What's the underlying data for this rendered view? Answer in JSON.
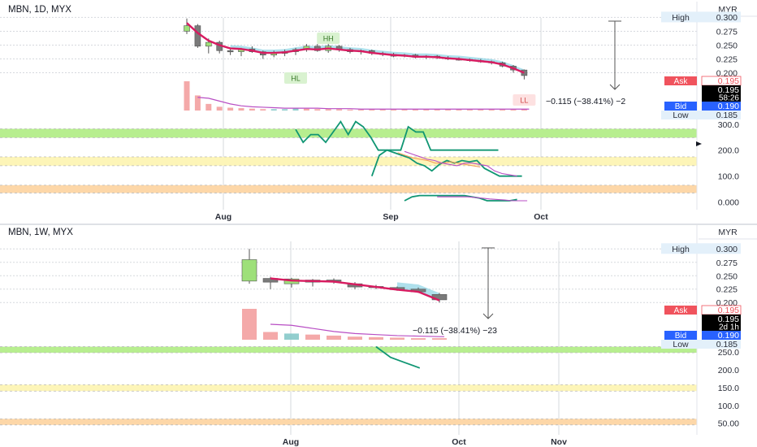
{
  "colors": {
    "background": "#ffffff",
    "grid": "#d6d9de",
    "text": "#131722",
    "axis_text": "#2a2e39",
    "candle_up": "#9ee07a",
    "candle_down": "#7a7a7a",
    "candle_wick": "#555555",
    "ma_red": "#d81b60",
    "cloud_blue": "#6cc6dd",
    "volume_bar": "#f29a9a",
    "volume_bar_teal": "#7fc6c6",
    "volume_line": "#b84ec4",
    "indicator_green": "#109673",
    "indicator_orange": "#f3a05a",
    "indicator_purple": "#b84ec4",
    "zone_green": "#b7ee8f",
    "zone_yellow": "#fdf5b8",
    "zone_orange": "#fdd7a8",
    "ask": "#f0535d",
    "bid": "#2962ff",
    "label_box": "#e3f0fa",
    "price_tag": "#000000",
    "annotation_green_bg": "#d9f2d0",
    "annotation_red_bg": "#fde1e1"
  },
  "chart_data": [
    {
      "type": "candlestick",
      "title": "MBN, 1D, MYX",
      "currency": "MYR",
      "x_ticks": [
        "Aug",
        "Sep",
        "Oct"
      ],
      "price_axis": {
        "range": [
          0.17,
          0.305
        ],
        "ticks": [
          "0.300",
          "0.275",
          "0.250",
          "0.225",
          "0.200"
        ]
      },
      "indicator_axis": {
        "range": [
          -20,
          340
        ],
        "ticks": [
          "300.0",
          "200.0",
          "100.0",
          "0.000"
        ]
      },
      "labels": {
        "high": "High",
        "high_value": "0.300",
        "ask": "Ask",
        "ask_value": "0.195",
        "last": "0.195",
        "countdown": "58:26",
        "bid": "Bid",
        "bid_value": "0.190",
        "low": "Low",
        "low_value": "0.185"
      },
      "annotations": [
        {
          "text": "HH",
          "style": "green",
          "bar": 13
        },
        {
          "text": "HL",
          "style": "green",
          "bar": 10
        },
        {
          "text": "LL",
          "style": "red",
          "bar": 31
        }
      ],
      "measure_label": "−0.115 (−38.41%) −2",
      "candles": [
        [
          0.275,
          0.298,
          0.27,
          0.285
        ],
        [
          0.285,
          0.288,
          0.245,
          0.248
        ],
        [
          0.248,
          0.262,
          0.235,
          0.255
        ],
        [
          0.255,
          0.258,
          0.235,
          0.24
        ],
        [
          0.24,
          0.245,
          0.232,
          0.238
        ],
        [
          0.238,
          0.245,
          0.23,
          0.243
        ],
        [
          0.243,
          0.248,
          0.236,
          0.238
        ],
        [
          0.238,
          0.24,
          0.225,
          0.232
        ],
        [
          0.232,
          0.24,
          0.228,
          0.235
        ],
        [
          0.235,
          0.242,
          0.23,
          0.238
        ],
        [
          0.238,
          0.245,
          0.232,
          0.242
        ],
        [
          0.242,
          0.252,
          0.238,
          0.248
        ],
        [
          0.248,
          0.252,
          0.238,
          0.24
        ],
        [
          0.24,
          0.252,
          0.236,
          0.248
        ],
        [
          0.248,
          0.25,
          0.238,
          0.242
        ],
        [
          0.242,
          0.245,
          0.235,
          0.238
        ],
        [
          0.238,
          0.242,
          0.233,
          0.24
        ],
        [
          0.24,
          0.242,
          0.232,
          0.235
        ],
        [
          0.235,
          0.238,
          0.23,
          0.233
        ],
        [
          0.233,
          0.236,
          0.228,
          0.23
        ],
        [
          0.23,
          0.234,
          0.228,
          0.232
        ],
        [
          0.232,
          0.234,
          0.226,
          0.228
        ],
        [
          0.228,
          0.232,
          0.225,
          0.23
        ],
        [
          0.23,
          0.232,
          0.225,
          0.227
        ],
        [
          0.227,
          0.23,
          0.223,
          0.225
        ],
        [
          0.225,
          0.228,
          0.222,
          0.224
        ],
        [
          0.224,
          0.226,
          0.22,
          0.222
        ],
        [
          0.222,
          0.225,
          0.218,
          0.22
        ],
        [
          0.22,
          0.222,
          0.215,
          0.218
        ],
        [
          0.218,
          0.22,
          0.21,
          0.212
        ],
        [
          0.212,
          0.214,
          0.2,
          0.205
        ],
        [
          0.205,
          0.206,
          0.188,
          0.195
        ]
      ],
      "ma_red": [
        0.29,
        0.272,
        0.258,
        0.25,
        0.244,
        0.243,
        0.24,
        0.236,
        0.236,
        0.237,
        0.24,
        0.243,
        0.242,
        0.244,
        0.242,
        0.24,
        0.239,
        0.236,
        0.234,
        0.232,
        0.231,
        0.229,
        0.229,
        0.228,
        0.226,
        0.225,
        0.223,
        0.221,
        0.219,
        0.215,
        0.208,
        0.2
      ],
      "volume": [
        62,
        32,
        14,
        8,
        6,
        5,
        4,
        3,
        3,
        3,
        5,
        4,
        3,
        3,
        3,
        2,
        2,
        2,
        2,
        2,
        2,
        2,
        2,
        2,
        2,
        2,
        2,
        2,
        2,
        2,
        2,
        3
      ],
      "volume_ma": [
        null,
        28,
        26,
        20,
        14,
        10,
        8,
        7,
        6,
        5,
        5,
        5,
        5,
        4,
        4,
        4,
        3,
        3,
        3,
        3,
        3,
        3,
        3,
        3,
        3,
        3,
        3,
        3,
        3,
        3,
        3,
        3
      ],
      "zones": [
        {
          "color": "green",
          "range": [
            248,
            282
          ]
        },
        {
          "color": "yellow",
          "range": [
            140,
            174
          ]
        },
        {
          "color": "orange",
          "range": [
            35,
            65
          ]
        }
      ],
      "indicator_series": [
        {
          "color": "green",
          "start": 10,
          "values": [
            280,
            230,
            260,
            260,
            230,
            270,
            310,
            260,
            310,
            290,
            250,
            200,
            200,
            200,
            200,
            290,
            270,
            270,
            200,
            200,
            200,
            200,
            200,
            200,
            200,
            200,
            200,
            200
          ]
        },
        {
          "color": "green",
          "start": 17,
          "values": [
            100,
            180,
            200,
            190,
            180,
            170,
            150,
            140,
            120,
            145,
            160,
            150,
            160,
            155,
            160,
            130,
            115,
            100,
            100,
            100,
            100
          ]
        },
        {
          "color": "orange",
          "start": 18,
          "values": [
            null,
            null,
            190,
            180,
            170,
            165,
            160,
            150,
            150,
            155,
            150,
            145,
            140,
            135
          ]
        },
        {
          "color": "purple",
          "start": 20,
          "values": [
            195,
            185,
            175,
            165,
            160,
            150,
            145,
            140,
            150,
            150,
            145,
            140,
            120,
            110,
            105,
            100
          ]
        },
        {
          "color": "green",
          "start": 20,
          "values": [
            5,
            20,
            25,
            25,
            25,
            25,
            25,
            25,
            25,
            20,
            15,
            5,
            5,
            5,
            5,
            10
          ]
        },
        {
          "color": "purple",
          "start": 23,
          "values": [
            20,
            20,
            20,
            20,
            20,
            18,
            15,
            12,
            10,
            8,
            5,
            5,
            5
          ]
        }
      ]
    },
    {
      "type": "candlestick",
      "title": "MBN, 1W, MYX",
      "currency": "MYR",
      "x_ticks": [
        "Aug",
        "Oct",
        "Nov"
      ],
      "price_axis": {
        "range": [
          0.17,
          0.305
        ],
        "ticks": [
          "0.300",
          "0.275",
          "0.250",
          "0.225",
          "0.200"
        ]
      },
      "indicator_axis": {
        "range": [
          40,
          280
        ],
        "ticks": [
          "250.0",
          "200.0",
          "150.0",
          "100.0",
          "50.00"
        ]
      },
      "labels": {
        "high": "High",
        "high_value": "0.300",
        "ask": "Ask",
        "ask_value": "0.195",
        "last": "0.195",
        "countdown": "2d 1h",
        "bid": "Bid",
        "bid_value": "0.190",
        "low": "Low",
        "low_value": "0.185"
      },
      "measure_label": "−0.115 (−38.41%) −23",
      "candles": [
        [
          0.24,
          0.3,
          0.235,
          0.28
        ],
        [
          0.245,
          0.248,
          0.225,
          0.238
        ],
        [
          0.235,
          0.246,
          0.228,
          0.244
        ],
        [
          0.238,
          0.244,
          0.23,
          0.242
        ],
        [
          0.242,
          0.245,
          0.235,
          0.24
        ],
        [
          0.235,
          0.238,
          0.225,
          0.229
        ],
        [
          0.23,
          0.233,
          0.225,
          0.228
        ],
        [
          0.228,
          0.23,
          0.222,
          0.224
        ],
        [
          0.225,
          0.228,
          0.218,
          0.22
        ],
        [
          0.215,
          0.218,
          0.2,
          0.205
        ]
      ],
      "ma_red": [
        null,
        0.245,
        0.241,
        0.24,
        0.239,
        0.234,
        0.229,
        0.224,
        0.22,
        0.204
      ],
      "volume": [
        60,
        15,
        12,
        10,
        8,
        6,
        5,
        4,
        3,
        3
      ],
      "volume_ma": [
        null,
        30,
        28,
        22,
        16,
        12,
        10,
        8,
        7,
        6
      ],
      "zones": [
        {
          "color": "green",
          "range": [
            248,
            265
          ]
        },
        {
          "color": "yellow",
          "range": [
            140,
            158
          ]
        },
        {
          "color": "orange",
          "range": [
            45,
            62
          ]
        }
      ],
      "indicator_series": [
        {
          "color": "green",
          "start": 6,
          "values": [
            265,
            235,
            220,
            205
          ]
        }
      ]
    }
  ]
}
